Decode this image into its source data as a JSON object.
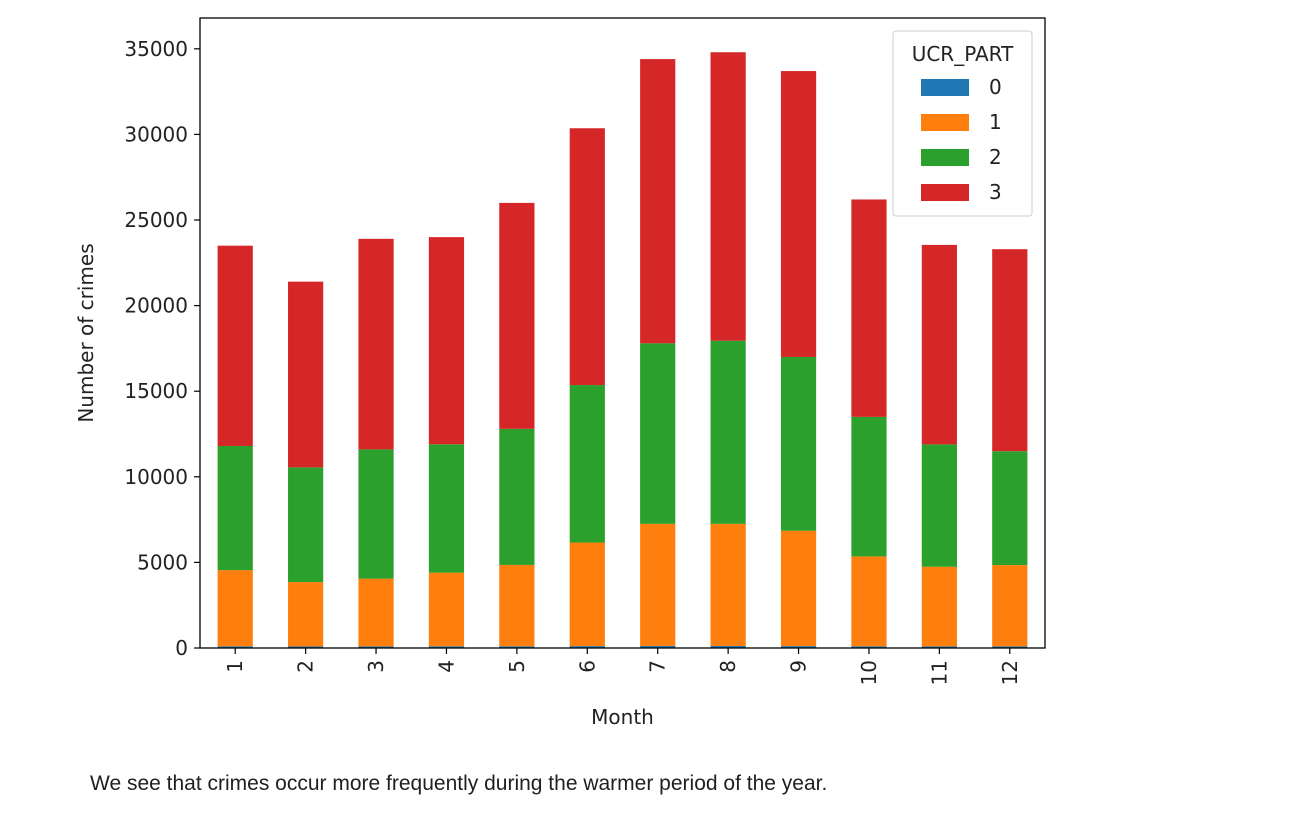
{
  "caption": "We see that crimes occur more frequently during the warmer period of the year.",
  "chart_data": {
    "type": "bar",
    "stacked": true,
    "xlabel": "Month",
    "ylabel": "Number of crimes",
    "ylim": [
      0,
      36800
    ],
    "yticks": [
      0,
      5000,
      10000,
      15000,
      20000,
      25000,
      30000,
      35000
    ],
    "categories": [
      "1",
      "2",
      "3",
      "4",
      "5",
      "6",
      "7",
      "8",
      "9",
      "10",
      "11",
      "12"
    ],
    "legend_title": "UCR_PART",
    "legend_position": "top-right",
    "grid": false,
    "series": [
      {
        "name": "0",
        "color": "#1f77b4",
        "values": [
          100,
          90,
          95,
          100,
          100,
          110,
          120,
          120,
          110,
          100,
          95,
          95
        ]
      },
      {
        "name": "1",
        "color": "#ff7f0e",
        "values": [
          4450,
          3760,
          3955,
          4300,
          4750,
          6050,
          7130,
          7130,
          6740,
          5250,
          4650,
          4750
        ]
      },
      {
        "name": "2",
        "color": "#2ca02c",
        "values": [
          7250,
          6700,
          7550,
          7500,
          7950,
          9200,
          10550,
          10700,
          10150,
          8150,
          7150,
          6650
        ]
      },
      {
        "name": "3",
        "color": "#d62728",
        "values": [
          11700,
          10850,
          12300,
          12100,
          13200,
          15000,
          16600,
          16850,
          16700,
          12700,
          11650,
          11800
        ]
      }
    ]
  }
}
